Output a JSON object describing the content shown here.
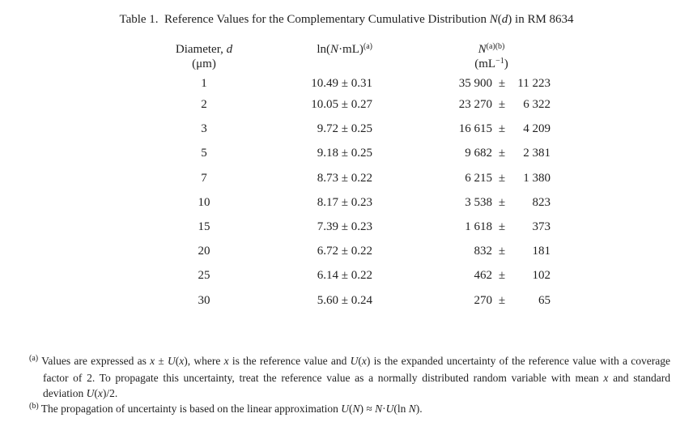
{
  "title": {
    "parts": [
      {
        "t": "Table 1.  Reference Values for the Complementary Cumulative Distribution "
      },
      {
        "t": "N",
        "style": "it"
      },
      {
        "t": "("
      },
      {
        "t": "d",
        "style": "it"
      },
      {
        "t": ")"
      },
      {
        "t": " in RM 8634"
      }
    ]
  },
  "table": {
    "headers": {
      "diameter": {
        "label_parts": [
          {
            "t": "Diameter, "
          },
          {
            "t": "d",
            "style": "it"
          }
        ],
        "unit": "(μm)"
      },
      "ln": {
        "label_parts": [
          {
            "t": "ln("
          },
          {
            "t": "N",
            "style": "it"
          },
          {
            "t": "·mL)"
          },
          {
            "t": "(a)",
            "style": "sup"
          }
        ]
      },
      "n": {
        "label_parts": [
          {
            "t": "N",
            "style": "it"
          },
          {
            "t": "(a)(b)",
            "style": "sup"
          }
        ],
        "unit_parts": [
          {
            "t": "(mL"
          },
          {
            "t": "−1",
            "style": "sup"
          },
          {
            "t": ")"
          }
        ]
      }
    },
    "rows": [
      {
        "d": "1",
        "ln": "10.49 ± 0.31",
        "n": "35 900",
        "pm": "±",
        "u": "11 223"
      },
      {
        "d": "2",
        "ln": "10.05 ± 0.27",
        "n": "23 270",
        "pm": "±",
        "u": "6 322"
      },
      {
        "d": "3",
        "ln": "9.72 ± 0.25",
        "n": "16 615",
        "pm": "±",
        "u": "4 209"
      },
      {
        "d": "5",
        "ln": "9.18 ± 0.25",
        "n": "9 682",
        "pm": "±",
        "u": "2 381"
      },
      {
        "d": "7",
        "ln": "8.73 ± 0.22",
        "n": "6 215",
        "pm": "±",
        "u": "1 380"
      },
      {
        "d": "10",
        "ln": "8.17 ± 0.23",
        "n": "3 538",
        "pm": "±",
        "u": "823"
      },
      {
        "d": "15",
        "ln": "7.39 ± 0.23",
        "n": "1 618",
        "pm": "±",
        "u": "373"
      },
      {
        "d": "20",
        "ln": "6.72 ± 0.22",
        "n": "832",
        "pm": "±",
        "u": "181"
      },
      {
        "d": "25",
        "ln": "6.14 ± 0.22",
        "n": "462",
        "pm": "±",
        "u": "102"
      },
      {
        "d": "30",
        "ln": "5.60 ± 0.24",
        "n": "270",
        "pm": "±",
        "u": "65"
      }
    ]
  },
  "footnotes": {
    "a": {
      "parts": [
        {
          "t": "(a)",
          "style": "sup"
        },
        {
          "t": " Values are expressed as "
        },
        {
          "t": "x",
          "style": "it"
        },
        {
          "t": " ± "
        },
        {
          "t": "U",
          "style": "it"
        },
        {
          "t": "("
        },
        {
          "t": "x",
          "style": "it"
        },
        {
          "t": "), where "
        },
        {
          "t": "x",
          "style": "it"
        },
        {
          "t": " is the reference value and "
        },
        {
          "t": "U",
          "style": "it"
        },
        {
          "t": "("
        },
        {
          "t": "x",
          "style": "it"
        },
        {
          "t": ") is the expanded uncertainty of the reference value with a coverage factor of 2. To propagate this uncertainty, treat the reference value as a normally distributed random variable with mean "
        },
        {
          "t": "x",
          "style": "it"
        },
        {
          "t": " and standard deviation "
        },
        {
          "t": "U",
          "style": "it"
        },
        {
          "t": "("
        },
        {
          "t": "x",
          "style": "it"
        },
        {
          "t": ")/2."
        }
      ]
    },
    "b": {
      "parts": [
        {
          "t": "(b)",
          "style": "sup"
        },
        {
          "t": " The propagation of uncertainty is based on the linear approximation "
        },
        {
          "t": "U",
          "style": "it"
        },
        {
          "t": "("
        },
        {
          "t": "N",
          "style": "it"
        },
        {
          "t": ") ≈ "
        },
        {
          "t": "N",
          "style": "it"
        },
        {
          "t": "·"
        },
        {
          "t": "U",
          "style": "it"
        },
        {
          "t": "(ln "
        },
        {
          "t": "N",
          "style": "it"
        },
        {
          "t": ")."
        }
      ]
    }
  }
}
